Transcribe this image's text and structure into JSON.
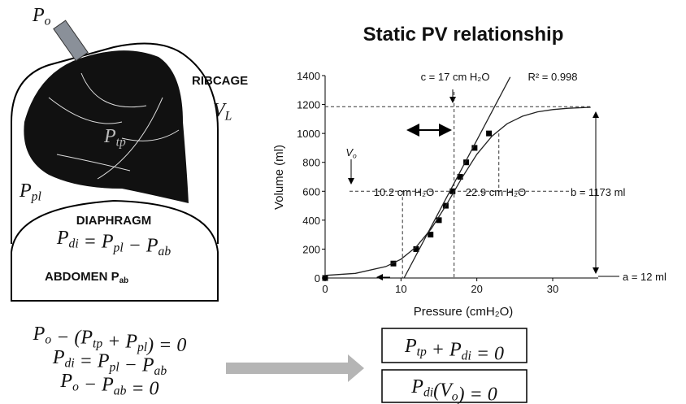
{
  "diagram": {
    "labels": {
      "po": [
        {
          "base": "P",
          "sub": "o"
        }
      ],
      "ribcage": [
        "RIBCAGE"
      ],
      "vl": [
        {
          "base": "V",
          "sub": "L"
        }
      ],
      "ptp": [
        {
          "base": "P",
          "sub": "tp"
        }
      ],
      "ppl": [
        {
          "base": "P",
          "sub": "pl"
        }
      ],
      "diaphragm": [
        "DIAPHRAGM"
      ],
      "pdi_eq": [
        {
          "base": "P",
          "sub": "di"
        },
        " = ",
        {
          "base": "P",
          "sub": "pl"
        },
        " − ",
        {
          "base": "P",
          "sub": "ab"
        }
      ],
      "abdomen": [
        "ABDOMEN ",
        {
          "base": "P",
          "sub": "ab"
        }
      ]
    },
    "equations": [
      [
        {
          "base": "P",
          "sub": "o"
        },
        " − (",
        {
          "base": "P",
          "sub": "tp"
        },
        " + ",
        {
          "base": "P",
          "sub": "pl"
        },
        ") = 0"
      ],
      [
        {
          "base": "P",
          "sub": "di"
        },
        " = ",
        {
          "base": "P",
          "sub": "pl"
        },
        " − ",
        {
          "base": "P",
          "sub": "ab"
        }
      ],
      [
        {
          "base": "P",
          "sub": "o"
        },
        " − ",
        {
          "base": "P",
          "sub": "ab"
        },
        " = 0"
      ]
    ],
    "results": [
      [
        {
          "base": "P",
          "sub": "tp"
        },
        " + ",
        {
          "base": "P",
          "sub": "di"
        },
        " = 0"
      ],
      [
        {
          "base": "P",
          "sub": "di"
        },
        "(",
        {
          "base": "V",
          "sub": "o"
        },
        ") = 0"
      ]
    ]
  },
  "chart_data": {
    "type": "scatter",
    "title": "Static PV relationship",
    "xlabel": "Pressure (cmH₂O)",
    "ylabel": "Volume (ml)",
    "xlim": [
      0,
      36
    ],
    "ylim": [
      0,
      1400
    ],
    "xticks": [
      0,
      10,
      20,
      30
    ],
    "yticks": [
      0,
      200,
      400,
      600,
      800,
      1000,
      1200,
      1400
    ],
    "series": [
      {
        "style": "marker",
        "color": "#000000",
        "x": [
          0,
          9,
          12,
          13.9,
          15,
          15.9,
          16.8,
          17.8,
          18.6,
          19.7,
          21.6
        ],
        "values": [
          0,
          100,
          200,
          300,
          400,
          500,
          600,
          700,
          800,
          900,
          1000
        ]
      },
      {
        "style": "line",
        "color": "#222222",
        "x": [
          0,
          4,
          8,
          10,
          12,
          14,
          16,
          17,
          18,
          20,
          22,
          24,
          26,
          28,
          30,
          32,
          35
        ],
        "values": [
          18,
          32,
          79,
          130,
          215,
          342,
          507,
          598,
          690,
          856,
          981,
          1067,
          1119,
          1149,
          1165,
          1174,
          1181
        ]
      },
      {
        "style": "line",
        "color": "#222222",
        "x": [
          10.4,
          24.4
        ],
        "values": [
          0,
          1390
        ]
      }
    ],
    "vlines": [
      10.2,
      17,
      22.9
    ],
    "hlines": [
      600,
      1185
    ],
    "annotations": [
      [
        "c = 17 cm H₂O"
      ],
      [
        "R² = 0.998"
      ],
      [
        {
          "base": "V",
          "sub": "o"
        }
      ],
      [
        "10.2 cm H₂O"
      ],
      [
        "22.9 cm H₂O"
      ],
      [
        "b = 1173 ml"
      ],
      [
        "a = 12 ml"
      ]
    ]
  }
}
